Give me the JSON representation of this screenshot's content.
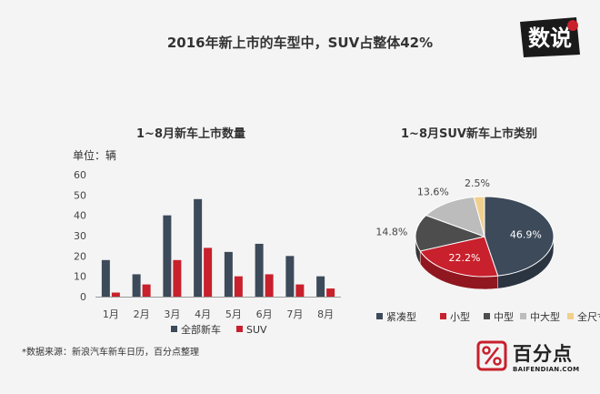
{
  "header": {
    "title": "2016年新上市的车型中，SUV占整体42%"
  },
  "logo": {
    "text": "数说"
  },
  "bar_chart": {
    "title": "1~8月新车上市数量",
    "unit_label": "单位：辆"
  },
  "pie_chart": {
    "title": "1~8月SUV新车上市类别"
  },
  "footnote": "*数据来源：新浪汽车新车日历，百分点整理",
  "brand": {
    "name": "百分点",
    "url": "BAIFENDIAN.COM"
  },
  "chart_data": [
    {
      "type": "bar",
      "categories": [
        "1月",
        "2月",
        "3月",
        "4月",
        "5月",
        "6月",
        "7月",
        "8月"
      ],
      "series": [
        {
          "name": "全部新车",
          "color": "#3c4a5a",
          "values": [
            18,
            11,
            40,
            48,
            22,
            26,
            20,
            10
          ]
        },
        {
          "name": "SUV",
          "color": "#c8202c",
          "values": [
            2,
            6,
            18,
            24,
            10,
            11,
            6,
            4
          ]
        }
      ],
      "ylim": [
        0,
        60
      ],
      "yticks": [
        0,
        10,
        20,
        30,
        40,
        50,
        60
      ],
      "legend": "bottom"
    },
    {
      "type": "pie",
      "slices": [
        {
          "label": "紧凑型",
          "value": 46.9,
          "display": "46.9%",
          "color": "#3c4a5a"
        },
        {
          "label": "小型",
          "value": 22.2,
          "display": "22.2%",
          "color": "#c8202c"
        },
        {
          "label": "中型",
          "value": 14.8,
          "display": "14.8%",
          "color": "#4d4d4d"
        },
        {
          "label": "中大型",
          "value": 13.6,
          "display": "13.6%",
          "color": "#bcbcbc"
        },
        {
          "label": "全尺寸",
          "value": 2.5,
          "display": "2.5%",
          "color": "#f0d08c"
        }
      ],
      "legend": "bottom"
    }
  ]
}
